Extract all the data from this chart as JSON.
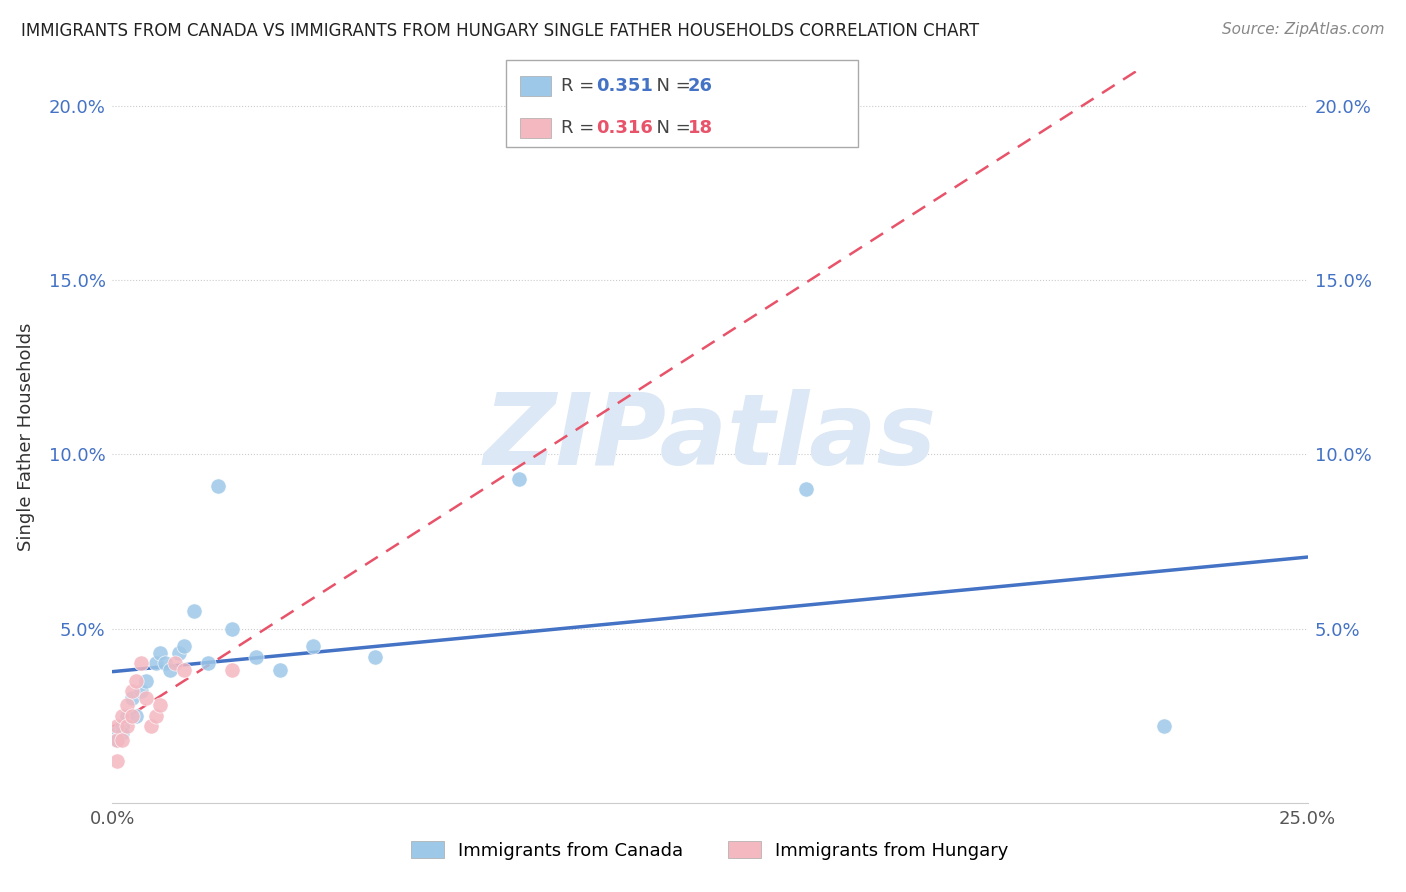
{
  "title": "IMMIGRANTS FROM CANADA VS IMMIGRANTS FROM HUNGARY SINGLE FATHER HOUSEHOLDS CORRELATION CHART",
  "source": "Source: ZipAtlas.com",
  "ylabel": "Single Father Households",
  "xlim": [
    0.0,
    0.25
  ],
  "ylim": [
    0.0,
    0.21
  ],
  "xtick_positions": [
    0.0,
    0.05,
    0.1,
    0.15,
    0.2,
    0.25
  ],
  "xtick_labels": [
    "0.0%",
    "",
    "",
    "",
    "",
    "25.0%"
  ],
  "ytick_positions": [
    0.0,
    0.05,
    0.1,
    0.15,
    0.2
  ],
  "ytick_labels": [
    "",
    "5.0%",
    "10.0%",
    "15.0%",
    "20.0%"
  ],
  "canada_color": "#9ec8e8",
  "hungary_color": "#f4b8c1",
  "canada_line_color": "#4472c4",
  "hungary_line_color": "#e8536a",
  "r_canada": 0.351,
  "n_canada": 26,
  "r_hungary": 0.316,
  "n_hungary": 18,
  "canada_points_x": [
    0.001,
    0.001,
    0.002,
    0.002,
    0.003,
    0.004,
    0.005,
    0.006,
    0.007,
    0.009,
    0.01,
    0.011,
    0.012,
    0.014,
    0.015,
    0.017,
    0.02,
    0.022,
    0.025,
    0.03,
    0.035,
    0.042,
    0.055,
    0.085,
    0.145,
    0.22
  ],
  "canada_points_y": [
    0.02,
    0.018,
    0.022,
    0.02,
    0.025,
    0.03,
    0.025,
    0.032,
    0.035,
    0.04,
    0.043,
    0.04,
    0.038,
    0.043,
    0.045,
    0.055,
    0.04,
    0.091,
    0.05,
    0.042,
    0.038,
    0.045,
    0.042,
    0.093,
    0.09,
    0.022
  ],
  "hungary_points_x": [
    0.001,
    0.001,
    0.001,
    0.002,
    0.002,
    0.003,
    0.003,
    0.004,
    0.004,
    0.005,
    0.006,
    0.007,
    0.008,
    0.009,
    0.01,
    0.013,
    0.015,
    0.025
  ],
  "hungary_points_y": [
    0.012,
    0.018,
    0.022,
    0.018,
    0.025,
    0.022,
    0.028,
    0.025,
    0.032,
    0.035,
    0.04,
    0.03,
    0.022,
    0.025,
    0.028,
    0.04,
    0.038,
    0.038
  ],
  "legend_label_canada": "Immigrants from Canada",
  "legend_label_hungary": "Immigrants from Hungary",
  "watermark_text": "ZIPatlas",
  "watermark_color": "#dce8f5"
}
